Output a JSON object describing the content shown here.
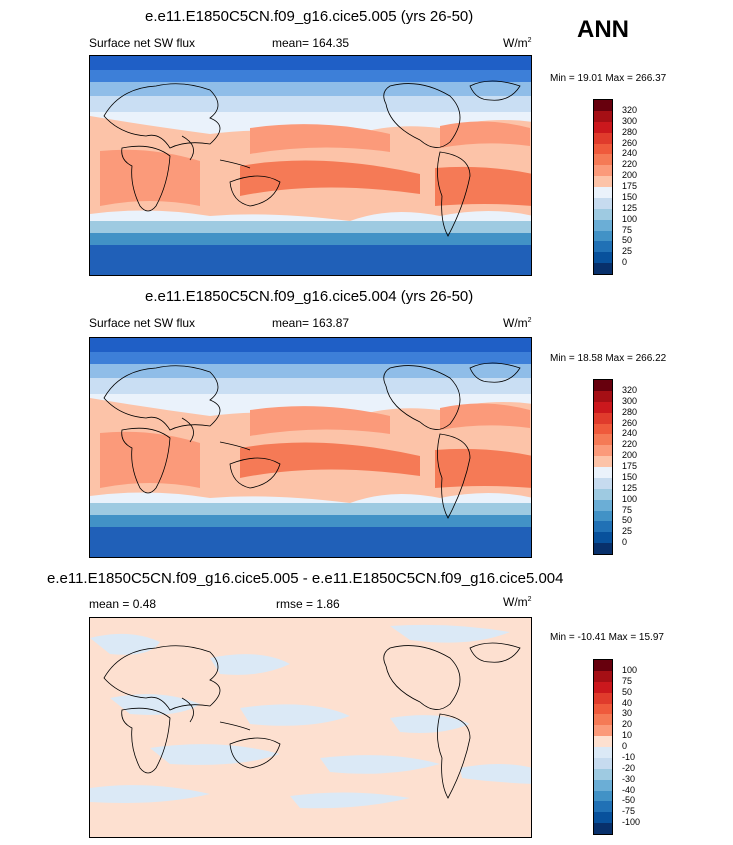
{
  "season": "ANN",
  "panels": [
    {
      "title": "e.e11.E1850C5CN.f09_g16.cice5.005 (yrs 26-50)",
      "left_label": "Surface net SW flux",
      "stat_label": "mean= 164.35",
      "units": "W/m",
      "units_sup": "2",
      "minmax": "Min =  19.01 Max = 266.37",
      "colorbar_labels": [
        "320",
        "300",
        "280",
        "260",
        "240",
        "220",
        "200",
        "175",
        "150",
        "125",
        "100",
        "75",
        "50",
        "25",
        "0"
      ]
    },
    {
      "title": "e.e11.E1850C5CN.f09_g16.cice5.004 (yrs 26-50)",
      "left_label": "Surface net SW flux",
      "stat_label": "mean= 163.87",
      "units": "W/m",
      "units_sup": "2",
      "minmax": "Min =  18.58 Max = 266.22",
      "colorbar_labels": [
        "320",
        "300",
        "280",
        "260",
        "240",
        "220",
        "200",
        "175",
        "150",
        "125",
        "100",
        "75",
        "50",
        "25",
        "0"
      ]
    },
    {
      "title": "e.e11.E1850C5CN.f09_g16.cice5.005 - e.e11.E1850C5CN.f09_g16.cice5.004",
      "left_label": "mean =   0.48",
      "stat_label": "rmse =   1.86",
      "units": "W/m",
      "units_sup": "2",
      "minmax": "Min = -10.41 Max =  15.97",
      "colorbar_labels": [
        "100",
        "75",
        "50",
        "40",
        "30",
        "20",
        "10",
        "0",
        "-10",
        "-20",
        "-30",
        "-40",
        "-50",
        "-75",
        "-100"
      ]
    }
  ],
  "colors": {
    "abs_scale": [
      "#67000d",
      "#a50f15",
      "#cb181d",
      "#e03b2c",
      "#ef5a3c",
      "#f57a56",
      "#fb9a7a",
      "#fcc3a8",
      "#eaf2fb",
      "#c6dbef",
      "#9ecae1",
      "#6baed6",
      "#4292c6",
      "#2171b5",
      "#08519c",
      "#08306b"
    ],
    "diff_scale": [
      "#67000d",
      "#a50f15",
      "#cb181d",
      "#e03b2c",
      "#ef5a3c",
      "#f57a56",
      "#fb9a7a",
      "#fde0d0",
      "#dbe9f6",
      "#c6dbef",
      "#9ecae1",
      "#6baed6",
      "#4292c6",
      "#2171b5",
      "#08519c",
      "#08306b"
    ]
  }
}
